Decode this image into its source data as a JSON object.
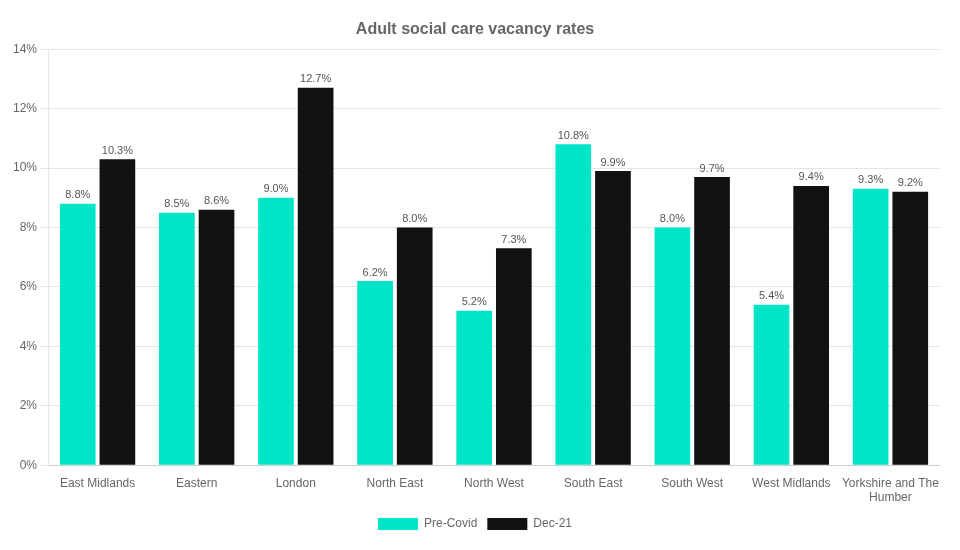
{
  "chart_data": {
    "type": "bar",
    "title": "Adult social care vacancy rates",
    "categories": [
      "East Midlands",
      "Eastern",
      "London",
      "North East",
      "North West",
      "South East",
      "South West",
      "West Midlands",
      "Yorkshire and The\nHumber"
    ],
    "series": [
      {
        "name": "Pre-Covid",
        "color": "#00E5C8",
        "values": [
          8.8,
          8.5,
          9.0,
          6.2,
          5.2,
          10.8,
          8.0,
          5.4,
          9.3
        ],
        "value_labels": [
          "8.8%",
          "8.5%",
          "9.0%",
          "6.2%",
          "5.2%",
          "10.8%",
          "8.0%",
          "5.4%",
          "9.3%"
        ]
      },
      {
        "name": "Dec-21",
        "color": "#111111",
        "values": [
          10.3,
          8.6,
          12.7,
          8.0,
          7.3,
          9.9,
          9.7,
          9.4,
          9.2
        ],
        "value_labels": [
          "10.3%",
          "8.6%",
          "12.7%",
          "8.0%",
          "7.3%",
          "9.9%",
          "9.7%",
          "9.4%",
          "9.2%"
        ]
      }
    ],
    "ylim": [
      0,
      14
    ],
    "yticks": [
      {
        "value": 0,
        "label": "0%"
      },
      {
        "value": 2,
        "label": "2%"
      },
      {
        "value": 4,
        "label": "4%"
      },
      {
        "value": 6,
        "label": "6%"
      },
      {
        "value": 8,
        "label": "8%"
      },
      {
        "value": 10,
        "label": "10%"
      },
      {
        "value": 12,
        "label": "12%"
      },
      {
        "value": 14,
        "label": "14%"
      }
    ],
    "grid": true,
    "legend": "bottom",
    "data_labels": true
  }
}
